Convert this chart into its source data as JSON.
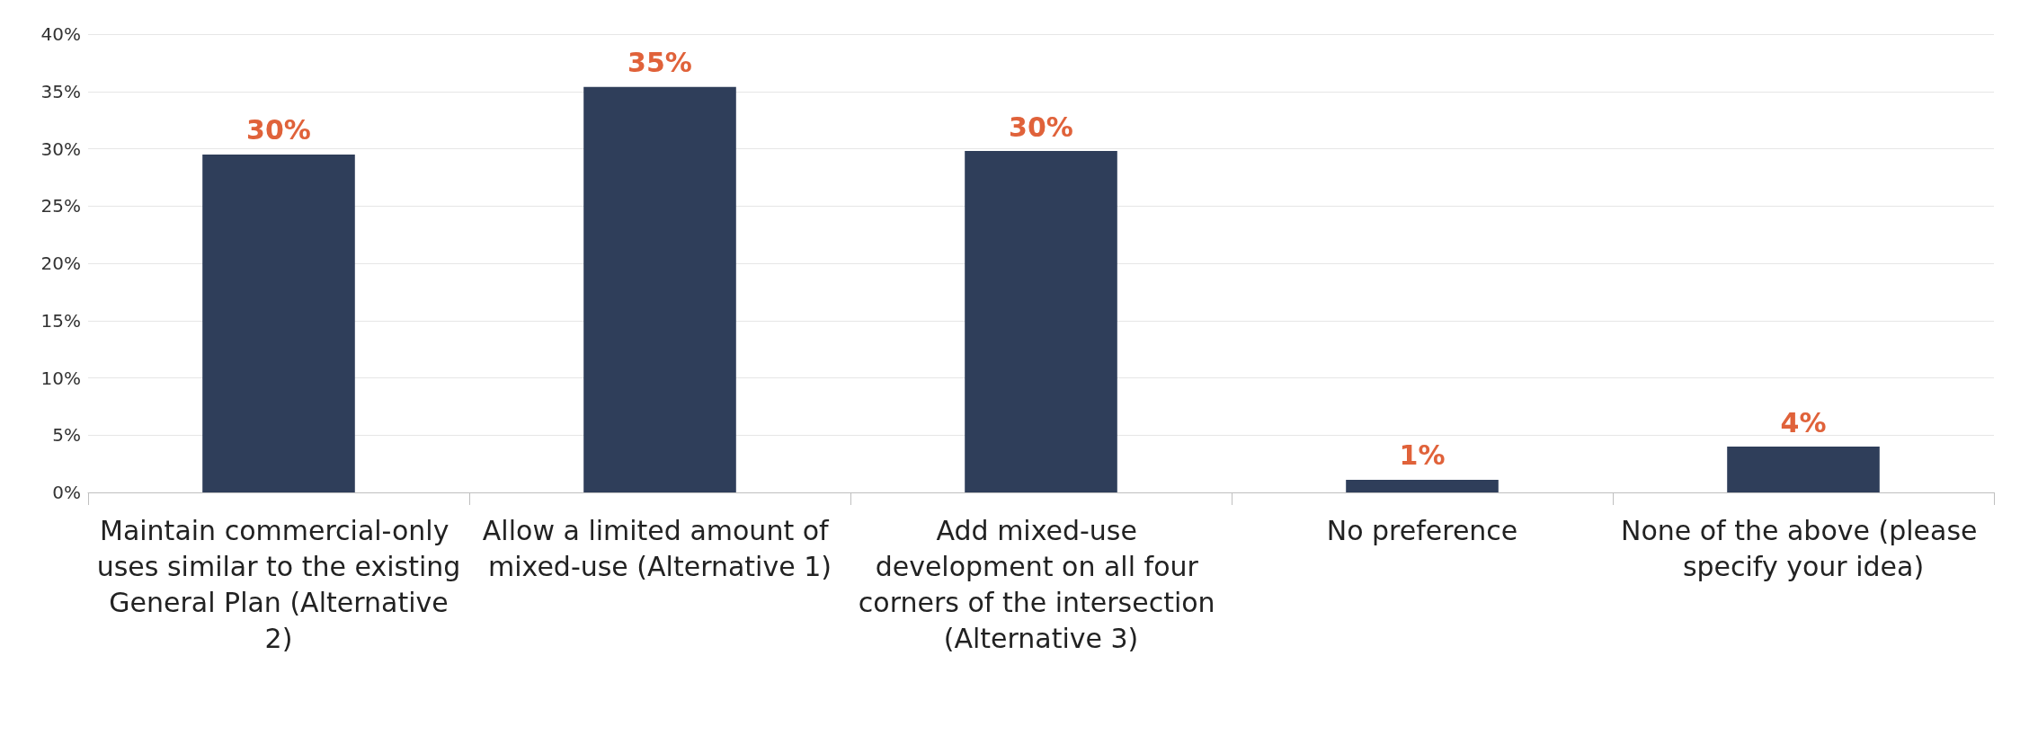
{
  "chart_data": {
    "type": "bar",
    "categories": [
      "Maintain commercial-only uses similar to the existing General Plan (Alternative 2)",
      "Allow a limited amount of mixed-use (Alternative 1)",
      "Add mixed-use development on all four corners of the intersection (Alternative 3)",
      "No preference",
      "None of the above (please specify your idea)"
    ],
    "values": [
      29.5,
      35.4,
      29.8,
      1.1,
      4.0
    ],
    "value_labels": [
      "30%",
      "35%",
      "30%",
      "1%",
      "4%"
    ],
    "color": "#2f3e5a",
    "ylim": [
      0,
      40
    ],
    "yticks": [
      {
        "value": 0,
        "label": "0%"
      },
      {
        "value": 5,
        "label": "5%"
      },
      {
        "value": 10,
        "label": "10%"
      },
      {
        "value": 15,
        "label": "15%"
      },
      {
        "value": 20,
        "label": "20%"
      },
      {
        "value": 25,
        "label": "25%"
      },
      {
        "value": 30,
        "label": "30%"
      },
      {
        "value": 35,
        "label": "35%"
      },
      {
        "value": 40,
        "label": "40%"
      }
    ],
    "grid": "y"
  }
}
